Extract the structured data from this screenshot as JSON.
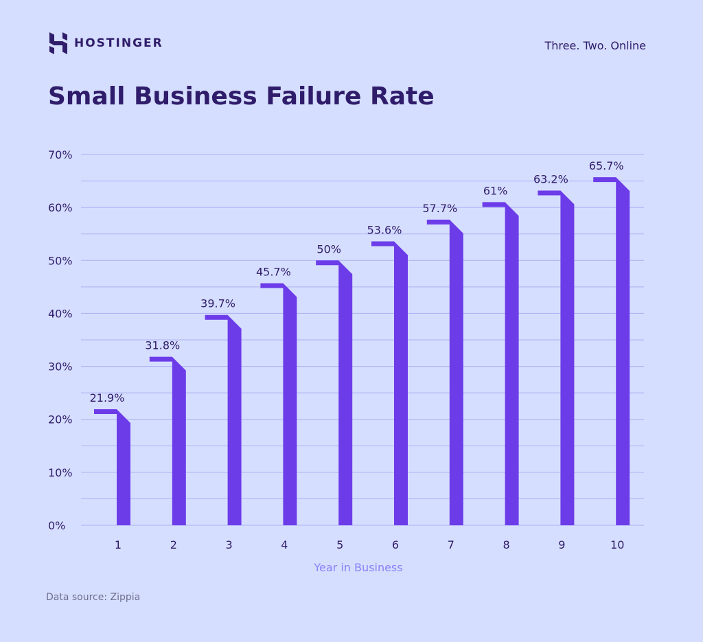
{
  "brand": {
    "name": "HOSTINGER",
    "tagline": "Three. Two. Online"
  },
  "colors": {
    "background": "#d6deff",
    "bar": "#6c3ce9",
    "text": "#2f1c6a",
    "grid": "#aab0f2",
    "xlabel": "#8a80f5"
  },
  "source": "Data source: Zippia",
  "chart_data": {
    "type": "bar",
    "title": "Small Business Failure Rate",
    "xlabel": "Year in Business",
    "ylabel": "",
    "categories": [
      "1",
      "2",
      "3",
      "4",
      "5",
      "6",
      "7",
      "8",
      "9",
      "10"
    ],
    "values": [
      21.9,
      31.8,
      39.7,
      45.7,
      50,
      53.6,
      57.7,
      61,
      63.2,
      65.7
    ],
    "data_labels": [
      "21.9%",
      "31.8%",
      "39.7%",
      "45.7%",
      "50%",
      "53.6%",
      "57.7%",
      "61%",
      "63.2%",
      "65.7%"
    ],
    "ylim": [
      0,
      70
    ],
    "yticks": [
      "0%",
      "10%",
      "20%",
      "30%",
      "40%",
      "50%",
      "60%",
      "70%"
    ],
    "grid": true,
    "minor_grid_step": 5
  }
}
